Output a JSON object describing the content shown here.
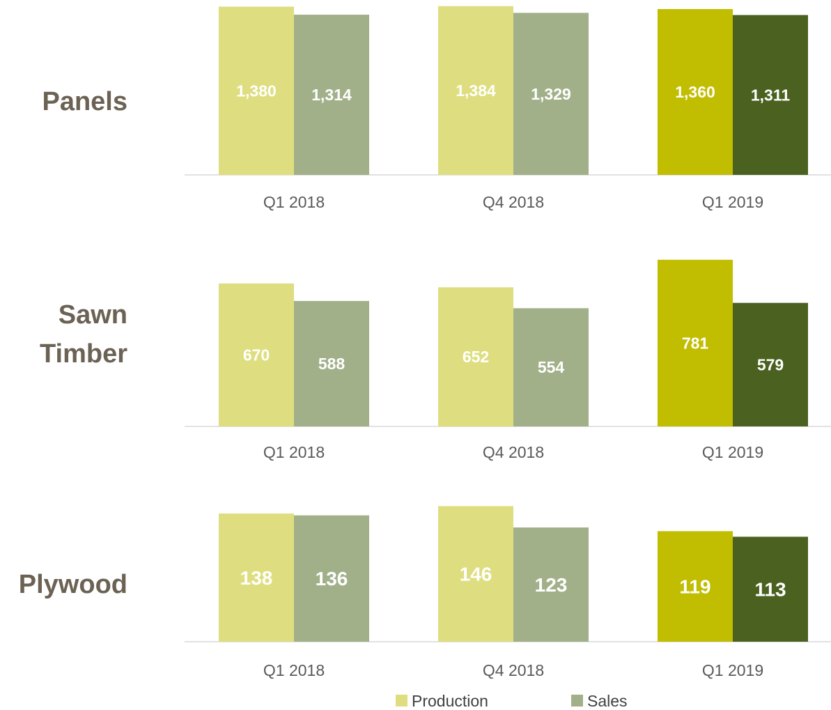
{
  "chart_data": [
    {
      "type": "bar",
      "row_label": [
        "Panels"
      ],
      "categories": [
        "Q1 2018",
        "Q4 2018",
        "Q1 2019"
      ],
      "series": [
        {
          "name": "Production",
          "values": [
            1380,
            1384,
            1360
          ],
          "labels": [
            "1,380",
            "1,384",
            "1,360"
          ]
        },
        {
          "name": "Sales",
          "values": [
            1314,
            1329,
            1311
          ],
          "labels": [
            "1,314",
            "1,329",
            "1,311"
          ]
        }
      ],
      "ylim": [
        0,
        1400
      ]
    },
    {
      "type": "bar",
      "row_label": [
        "Sawn",
        "Timber"
      ],
      "categories": [
        "Q1 2018",
        "Q4 2018",
        "Q1 2019"
      ],
      "series": [
        {
          "name": "Production",
          "values": [
            670,
            652,
            781
          ],
          "labels": [
            "670",
            "652",
            "781"
          ]
        },
        {
          "name": "Sales",
          "values": [
            588,
            554,
            579
          ],
          "labels": [
            "588",
            "554",
            "579"
          ]
        }
      ],
      "ylim": [
        0,
        800
      ]
    },
    {
      "type": "bar",
      "row_label": [
        "Plywood"
      ],
      "categories": [
        "Q1 2018",
        "Q4 2018",
        "Q1 2019"
      ],
      "series": [
        {
          "name": "Production",
          "values": [
            138,
            146,
            119
          ],
          "labels": [
            "138",
            "146",
            "119"
          ]
        },
        {
          "name": "Sales",
          "values": [
            136,
            123,
            113
          ],
          "labels": [
            "136",
            "123",
            "113"
          ]
        }
      ],
      "ylim": [
        0,
        150
      ]
    }
  ],
  "legend": {
    "position": "bottom-center",
    "items": [
      {
        "name": "Production",
        "color": "#dede80"
      },
      {
        "name": "Sales",
        "color": "#a2b08a"
      }
    ]
  },
  "colors": {
    "production": "#dede80",
    "sales": "#a2b08a",
    "production_highlight": "#c1bd00",
    "sales_highlight": "#4a6120"
  },
  "highlighted_category": "Q1 2019"
}
